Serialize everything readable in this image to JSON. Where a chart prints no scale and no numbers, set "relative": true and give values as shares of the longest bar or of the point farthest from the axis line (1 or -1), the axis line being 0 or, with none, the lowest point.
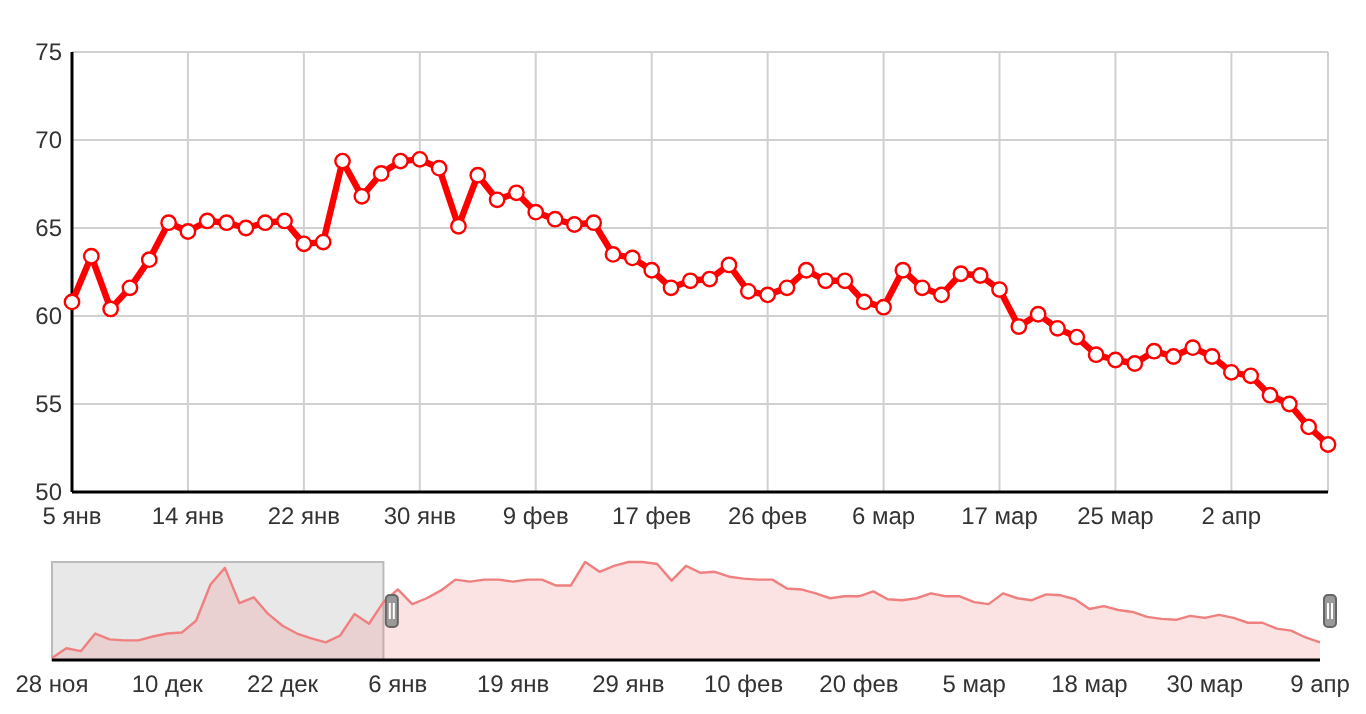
{
  "chart_data": [
    {
      "type": "line",
      "categories": [
        "5 янв",
        null,
        null,
        null,
        null,
        null,
        "14 янв",
        null,
        null,
        null,
        null,
        null,
        "22 янв",
        null,
        null,
        null,
        null,
        null,
        "30 янв",
        null,
        null,
        null,
        null,
        null,
        "9 фев",
        null,
        null,
        null,
        null,
        null,
        "17 фев",
        null,
        null,
        null,
        null,
        null,
        "26 фев",
        null,
        null,
        null,
        null,
        null,
        "6 мар",
        null,
        null,
        null,
        null,
        null,
        "17 мар",
        null,
        null,
        null,
        null,
        null,
        "25 мар",
        null,
        null,
        null,
        null,
        null,
        "2 апр",
        null,
        null,
        null,
        null,
        null
      ],
      "series": [
        {
          "color": "#ff0000",
          "values": [
            60.8,
            63.4,
            60.4,
            61.6,
            63.2,
            65.3,
            64.8,
            65.4,
            65.3,
            65.0,
            65.3,
            65.4,
            64.1,
            64.2,
            68.8,
            66.8,
            68.1,
            68.8,
            68.9,
            68.4,
            65.1,
            68.0,
            66.6,
            67.0,
            65.9,
            65.5,
            65.2,
            65.3,
            63.5,
            63.3,
            62.6,
            61.6,
            62.0,
            62.1,
            62.9,
            61.4,
            61.2,
            61.6,
            62.6,
            62.0,
            62.0,
            60.8,
            60.5,
            62.6,
            61.6,
            61.2,
            62.4,
            62.3,
            61.5,
            59.4,
            60.1,
            59.3,
            58.8,
            57.8,
            57.5,
            57.3,
            58.0,
            57.7,
            58.2,
            57.7,
            56.8,
            56.6,
            55.5,
            55.0,
            53.7,
            52.7
          ]
        }
      ],
      "ylim": [
        50,
        75
      ],
      "yticks": [
        50,
        55,
        60,
        65,
        70,
        75
      ],
      "grid": true,
      "marker": "circle",
      "line_style": "solid"
    },
    {
      "type": "area",
      "relative": true,
      "tick_labels": "x",
      "categories": [
        "28 ноя",
        null,
        null,
        null,
        null,
        null,
        null,
        null,
        "10 дек",
        null,
        null,
        null,
        null,
        null,
        null,
        null,
        "22 дек",
        null,
        null,
        null,
        null,
        null,
        null,
        null,
        "6 янв",
        null,
        null,
        null,
        null,
        null,
        null,
        null,
        "19 янв",
        null,
        null,
        null,
        null,
        null,
        null,
        null,
        "29 янв",
        null,
        null,
        null,
        null,
        null,
        null,
        null,
        "10 фев",
        null,
        null,
        null,
        null,
        null,
        null,
        null,
        "20 фев",
        null,
        null,
        null,
        null,
        null,
        null,
        null,
        "5 мар",
        null,
        null,
        null,
        null,
        null,
        null,
        null,
        "18 мар",
        null,
        null,
        null,
        null,
        null,
        null,
        null,
        "30 мар",
        null,
        null,
        null,
        null,
        null,
        null,
        null,
        "9 апр"
      ],
      "series": [
        {
          "color": "#f07f7f",
          "values": [
            0.02,
            0.12,
            0.09,
            0.27,
            0.21,
            0.2,
            0.2,
            0.24,
            0.27,
            0.28,
            0.4,
            0.77,
            0.94,
            0.58,
            0.64,
            0.47,
            0.35,
            0.27,
            0.22,
            0.18,
            0.25,
            0.47,
            0.37,
            0.59,
            0.72,
            0.57,
            0.63,
            0.71,
            0.82,
            0.8,
            0.82,
            0.82,
            0.8,
            0.82,
            0.82,
            0.76,
            0.76,
            1.0,
            0.9,
            0.96,
            1.0,
            1.0,
            0.98,
            0.81,
            0.96,
            0.89,
            0.9,
            0.85,
            0.83,
            0.82,
            0.82,
            0.73,
            0.72,
            0.68,
            0.63,
            0.65,
            0.65,
            0.7,
            0.62,
            0.61,
            0.63,
            0.68,
            0.65,
            0.65,
            0.59,
            0.57,
            0.68,
            0.63,
            0.61,
            0.67,
            0.66,
            0.62,
            0.52,
            0.55,
            0.51,
            0.49,
            0.44,
            0.42,
            0.41,
            0.45,
            0.43,
            0.46,
            0.43,
            0.38,
            0.38,
            0.32,
            0.3,
            0.23,
            0.18
          ]
        }
      ],
      "grid": false
    }
  ]
}
